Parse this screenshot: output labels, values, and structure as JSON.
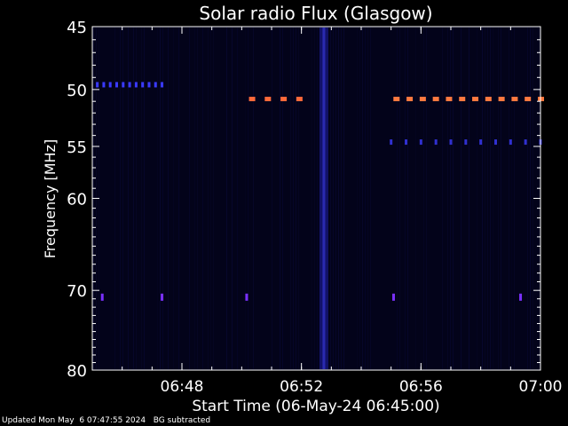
{
  "chart_data": {
    "type": "heatmap",
    "title": "Solar radio Flux (Glasgow)",
    "xlabel": "Start Time (06-May-24 06:45:00)",
    "ylabel": "Frequency [MHz]",
    "x_ticks": [
      "06:48",
      "06:52",
      "06:56",
      "07:00"
    ],
    "y_ticks": [
      45,
      50,
      55,
      60,
      70,
      80
    ],
    "xlim": [
      "06:45:00",
      "07:00:00"
    ],
    "ylim": [
      80,
      45
    ],
    "y_scale": "log",
    "features": [
      {
        "kind": "bright-bursts",
        "freq_mhz": 50.8,
        "time_start": "06:50:20",
        "time_end": "06:51:55",
        "count": 4,
        "color": "#ff6a3a"
      },
      {
        "kind": "bright-bursts",
        "freq_mhz": 50.8,
        "time_start": "06:55:10",
        "time_end": "07:00:00",
        "count": 12,
        "color": "#ff7a40"
      },
      {
        "kind": "weak-bursts",
        "freq_mhz": 49.6,
        "time_start": "06:45:10",
        "time_end": "06:47:20",
        "count": 11,
        "color": "#3a3aff"
      },
      {
        "kind": "weak-bursts",
        "freq_mhz": 54.6,
        "time_start": "06:55:00",
        "time_end": "07:00:00",
        "count": 11,
        "color": "#3030d0"
      },
      {
        "kind": "narrow-lines",
        "freq_mhz": 70.8,
        "times": [
          "06:45:20",
          "06:47:20",
          "06:50:10",
          "06:55:05",
          "06:59:20"
        ],
        "color": "#7a30ff"
      },
      {
        "kind": "vertical-band",
        "time": "06:52:45",
        "color": "#1a1a8a"
      }
    ]
  },
  "colors": {
    "background": "#000000",
    "axis": "#ffffff",
    "plot_bg": "#03031a"
  },
  "footer": {
    "updated": "Updated Mon May  6 07:47:55 2024",
    "note": "BG subtracted"
  }
}
